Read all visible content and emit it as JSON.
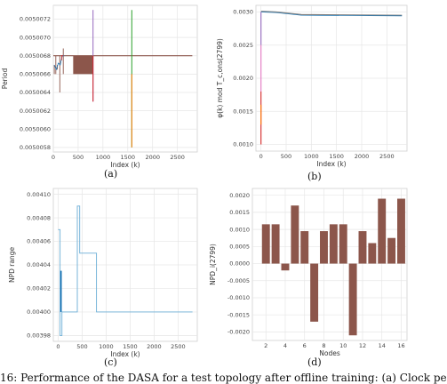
{
  "panels": {
    "a": {
      "label": "(a)"
    },
    "b": {
      "label": "(b)"
    },
    "c": {
      "label": "(c)"
    },
    "d": {
      "label": "(d)"
    }
  },
  "caption": "16: Performance of the DASA for a test topology after offline training: (a) Clock pe",
  "colors": {
    "grid": "#e6e6e6",
    "brown": "#8c564b",
    "blue": "#1f77b4",
    "lightblue": "#6baed6",
    "purple": "#9467bd",
    "green": "#2ca02c",
    "orange": "#ff7f0e",
    "red": "#d62728",
    "pink": "#e377c2",
    "gray": "#7f7f7f"
  },
  "chart_data": [
    {
      "type": "line",
      "id": "a",
      "xlabel": "Index (k)",
      "ylabel": "Period",
      "xlim": [
        0,
        2900
      ],
      "ylim": [
        0.00500575,
        0.00500735
      ],
      "xticks": [
        "0",
        "500",
        "1000",
        "1500",
        "2000",
        "2500"
      ],
      "yticks": [
        "0.0050058",
        "0.0050060",
        "0.0050062",
        "0.0050064",
        "0.0050066",
        "0.0050068",
        "0.0050070",
        "0.0050072"
      ],
      "baseline": 0.0050068,
      "block": {
        "x": [
          400,
          800
        ],
        "y": [
          0.0050066,
          0.0050068
        ]
      },
      "spikes": [
        {
          "x": 800,
          "y": [
            0.0050063,
            0.0050073
          ],
          "color": "purple"
        },
        {
          "x": 1580,
          "y": [
            0.0050058,
            0.0050073
          ],
          "color": "green"
        },
        {
          "x": 1580,
          "y": [
            0.0050058,
            0.0050066
          ],
          "color": "orange"
        },
        {
          "x": 800,
          "y": [
            0.0050063,
            0.0050068
          ],
          "color": "red"
        }
      ],
      "grid": true
    },
    {
      "type": "line",
      "id": "b",
      "xlabel": "Index (k)",
      "ylabel": "φ(k) mod T_c,ons(2799)",
      "xlim": [
        -100,
        2900
      ],
      "ylim": [
        0.0009,
        0.0031
      ],
      "xticks": [
        "0",
        "500",
        "1000",
        "1500",
        "2000",
        "2500"
      ],
      "yticks": [
        "0.0010",
        "0.0015",
        "0.0020",
        "0.0025",
        "0.0030"
      ],
      "series": [
        {
          "x": [
            0,
            300,
            800,
            2800
          ],
          "y": [
            0.00301,
            0.003,
            0.00296,
            0.00295
          ]
        }
      ],
      "spike": {
        "x": 0,
        "y": [
          0.001,
          0.003
        ]
      },
      "grid": true
    },
    {
      "type": "line",
      "id": "c",
      "xlabel": "Index (k)",
      "ylabel": "NPD range",
      "xlim": [
        -100,
        2900
      ],
      "ylim": [
        0.003975,
        0.004105
      ],
      "xticks": [
        "0",
        "500",
        "1000",
        "1500",
        "2000",
        "2500"
      ],
      "yticks": [
        "0.00398",
        "0.00400",
        "0.00402",
        "0.00404",
        "0.00406",
        "0.00408",
        "0.00410"
      ],
      "series": [
        {
          "x": [
            0,
            40,
            40,
            80,
            80,
            200,
            200,
            400,
            400,
            450,
            450,
            800,
            800,
            2800
          ],
          "y": [
            0.00407,
            0.00407,
            0.00398,
            0.00398,
            0.004,
            0.004,
            0.004,
            0.004,
            0.00409,
            0.00409,
            0.00405,
            0.00405,
            0.004,
            0.004
          ]
        }
      ],
      "grid": true
    },
    {
      "type": "bar",
      "id": "d",
      "xlabel": "Nodes",
      "ylabel": "NPD_i(2799)",
      "categories": [
        2,
        3,
        4,
        5,
        6,
        7,
        8,
        9,
        10,
        11,
        12,
        13,
        14,
        15,
        16
      ],
      "values": [
        0.00115,
        0.00115,
        -0.0002,
        0.0017,
        0.00095,
        -0.0017,
        0.00095,
        0.00115,
        0.00115,
        -0.0021,
        0.00095,
        0.0006,
        0.0019,
        0.00075,
        0.0019
      ],
      "xticks": [
        "2",
        "4",
        "6",
        "8",
        "10",
        "12",
        "14",
        "16"
      ],
      "yticks": [
        "-0.0020",
        "-0.0015",
        "-0.0010",
        "-0.0005",
        "0.0000",
        "0.0005",
        "0.0010",
        "0.0015",
        "0.0020"
      ],
      "ylim": [
        -0.00225,
        0.0022
      ],
      "grid": true
    }
  ]
}
